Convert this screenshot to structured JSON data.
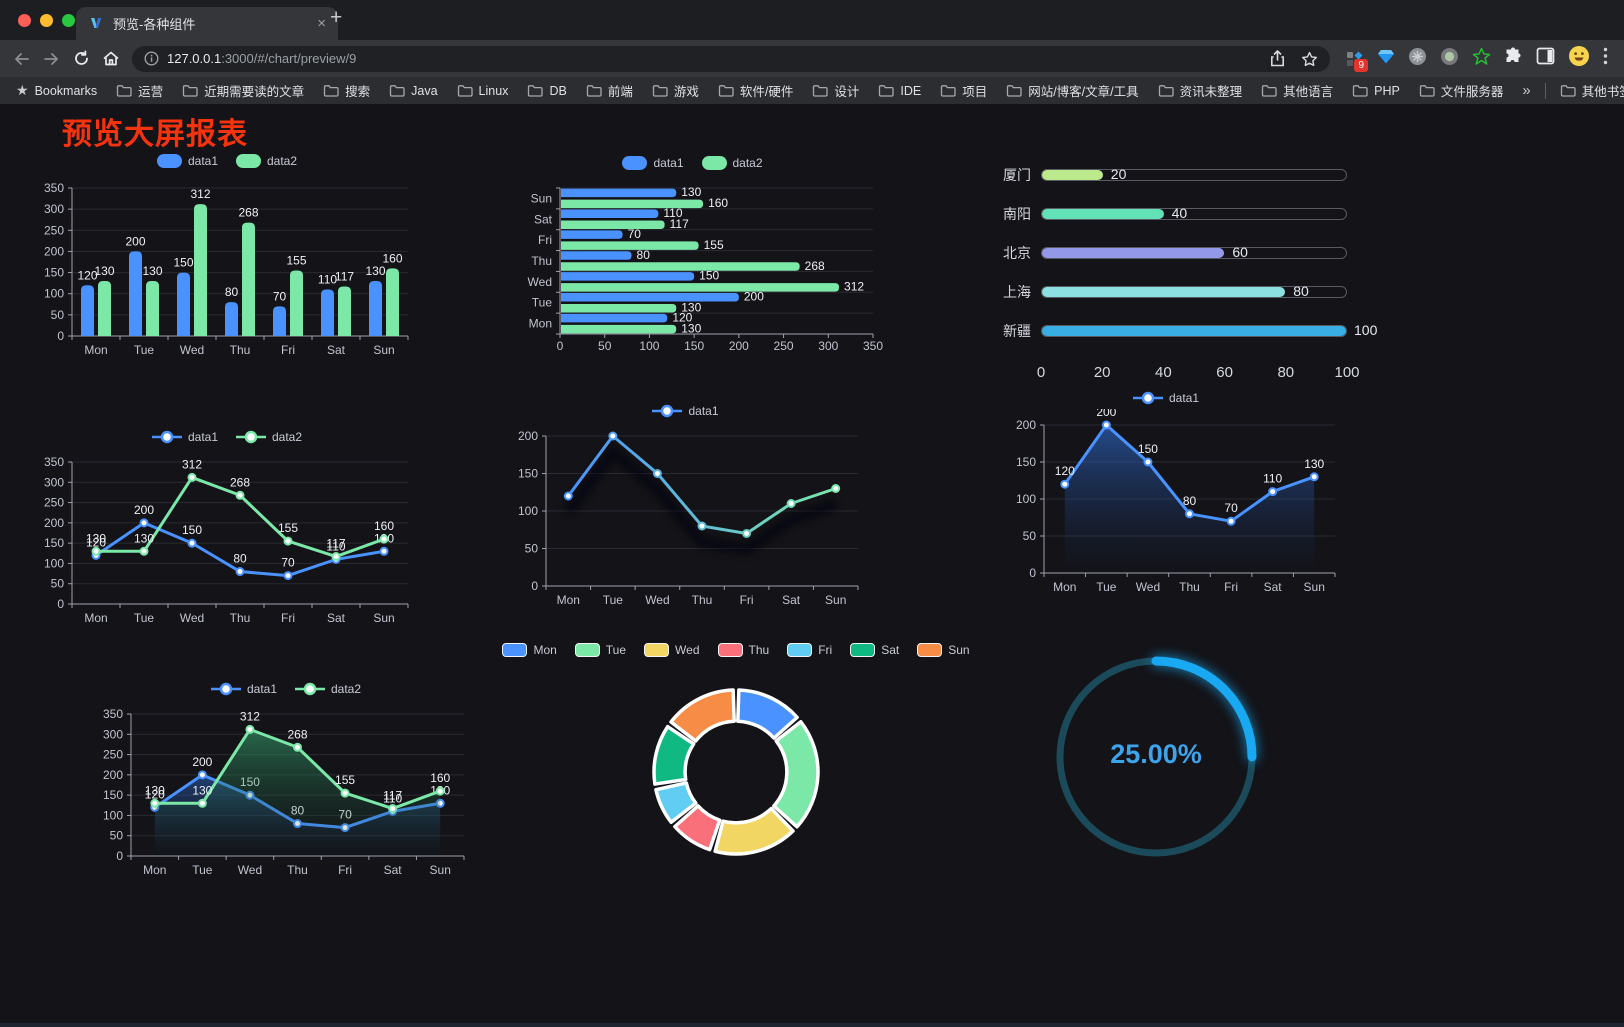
{
  "browser": {
    "traffic_lights": [
      "#ff5f57",
      "#febc2e",
      "#28c840"
    ],
    "tab": {
      "title": "预览-各种组件",
      "close": "×",
      "new_tab": "+"
    },
    "address": {
      "host": "127.0.0.1",
      "rest": ":3000/#/chart/preview/9"
    },
    "extensions_badge": "9",
    "bookmarks_bar": {
      "bookmarks_label": "Bookmarks",
      "folders": [
        "运营",
        "近期需要读的文章",
        "搜索",
        "Java",
        "Linux",
        "DB",
        "前端",
        "游戏",
        "软件/硬件",
        "设计",
        "IDE",
        "项目",
        "网站/博客/文章/工具",
        "资讯未整理",
        "其他语言",
        "PHP",
        "文件服务器"
      ],
      "overflow": "»",
      "other_bookmarks": "其他书签"
    }
  },
  "page": {
    "title": "预览大屏报表",
    "title_color": "#f5330f"
  },
  "chart_data": [
    {
      "id": "bar-vertical",
      "type": "bar",
      "categories": [
        "Mon",
        "Tue",
        "Wed",
        "Thu",
        "Fri",
        "Sat",
        "Sun"
      ],
      "series": [
        {
          "name": "data1",
          "color": "#4992ff",
          "values": [
            120,
            200,
            150,
            80,
            70,
            110,
            130
          ]
        },
        {
          "name": "data2",
          "color": "#7ce8a8",
          "values": [
            130,
            130,
            312,
            268,
            155,
            117,
            160
          ]
        }
      ],
      "ylim": [
        0,
        350
      ],
      "ystep": 50,
      "show_labels": true,
      "legend_position": "top"
    },
    {
      "id": "bar-horizontal",
      "type": "bar-horizontal",
      "categories": [
        "Mon",
        "Tue",
        "Wed",
        "Thu",
        "Fri",
        "Sat",
        "Sun"
      ],
      "display_order": "Sun-at-top",
      "series": [
        {
          "name": "data1",
          "color": "#4992ff",
          "values": [
            120,
            200,
            150,
            80,
            70,
            110,
            130
          ]
        },
        {
          "name": "data2",
          "color": "#7ce8a8",
          "values": [
            130,
            130,
            312,
            268,
            155,
            117,
            160
          ]
        }
      ],
      "xlim": [
        0,
        350
      ],
      "xstep": 50,
      "show_labels": true,
      "legend_position": "top"
    },
    {
      "id": "city-progress",
      "type": "progress",
      "max": 100,
      "xticks": [
        0,
        20,
        40,
        60,
        80,
        100
      ],
      "items": [
        {
          "label": "厦门",
          "value": 20,
          "color": "#bce98c"
        },
        {
          "label": "南阳",
          "value": 40,
          "color": "#63e2b7"
        },
        {
          "label": "北京",
          "value": 60,
          "color": "#9399e8"
        },
        {
          "label": "上海",
          "value": 80,
          "color": "#8ce0df"
        },
        {
          "label": "新疆",
          "value": 100,
          "color": "#39aee3"
        }
      ]
    },
    {
      "id": "line-two-series",
      "type": "line",
      "categories": [
        "Mon",
        "Tue",
        "Wed",
        "Thu",
        "Fri",
        "Sat",
        "Sun"
      ],
      "series": [
        {
          "name": "data1",
          "color": "#4992ff",
          "values": [
            120,
            200,
            150,
            80,
            70,
            110,
            130
          ]
        },
        {
          "name": "data2",
          "color": "#7ce8a8",
          "values": [
            130,
            130,
            312,
            268,
            155,
            117,
            160
          ]
        }
      ],
      "ylim": [
        0,
        350
      ],
      "ystep": 50,
      "show_labels": true,
      "legend_position": "top"
    },
    {
      "id": "line-gradient",
      "type": "line",
      "categories": [
        "Mon",
        "Tue",
        "Wed",
        "Thu",
        "Fri",
        "Sat",
        "Sun"
      ],
      "series": [
        {
          "name": "data1",
          "gradient": [
            "#4992ff",
            "#7ce8a8"
          ],
          "values": [
            120,
            200,
            150,
            80,
            70,
            110,
            130
          ]
        }
      ],
      "ylim": [
        0,
        200
      ],
      "ystep": 50,
      "show_labels": false,
      "shadow": true,
      "legend_position": "top"
    },
    {
      "id": "area-single",
      "type": "area",
      "categories": [
        "Mon",
        "Tue",
        "Wed",
        "Thu",
        "Fri",
        "Sat",
        "Sun"
      ],
      "series": [
        {
          "name": "data1",
          "color": "#4992ff",
          "fill_from": "rgba(45,100,190,0.70)",
          "fill_to": "rgba(25,45,85,0.02)",
          "values": [
            120,
            200,
            150,
            80,
            70,
            110,
            130
          ]
        }
      ],
      "ylim": [
        0,
        200
      ],
      "ystep": 50,
      "show_labels": true,
      "legend_position": "top"
    },
    {
      "id": "area-two-series",
      "type": "area",
      "categories": [
        "Mon",
        "Tue",
        "Wed",
        "Thu",
        "Fri",
        "Sat",
        "Sun"
      ],
      "series": [
        {
          "name": "data1",
          "color": "#4992ff",
          "fill_from": "rgba(45,100,190,0.55)",
          "fill_to": "rgba(25,45,85,0.02)",
          "values": [
            120,
            200,
            150,
            80,
            70,
            110,
            130
          ]
        },
        {
          "name": "data2",
          "color": "#7ce8a8",
          "fill_from": "rgba(54,160,110,0.60)",
          "fill_to": "rgba(20,60,40,0.02)",
          "values": [
            130,
            130,
            312,
            268,
            155,
            117,
            160
          ]
        }
      ],
      "ylim": [
        0,
        350
      ],
      "ystep": 50,
      "show_labels": true,
      "legend_position": "top"
    },
    {
      "id": "weekday-donut",
      "type": "pie",
      "labels": [
        "Mon",
        "Tue",
        "Wed",
        "Thu",
        "Fri",
        "Sat",
        "Sun"
      ],
      "values": [
        120,
        200,
        150,
        80,
        70,
        110,
        130
      ],
      "colors": [
        "#4992ff",
        "#7ce8a8",
        "#f1d664",
        "#f9707a",
        "#61cdf2",
        "#10b981",
        "#f68c45"
      ],
      "inner_radius_ratio": 0.62,
      "border_color": "#ffffff",
      "legend_position": "top"
    },
    {
      "id": "percent-gauge",
      "type": "gauge",
      "value": 25,
      "label": "25.00%",
      "progress_color": "#18a9f2",
      "track_color": "#1b4a5a",
      "text_color": "#3da4ec"
    }
  ]
}
